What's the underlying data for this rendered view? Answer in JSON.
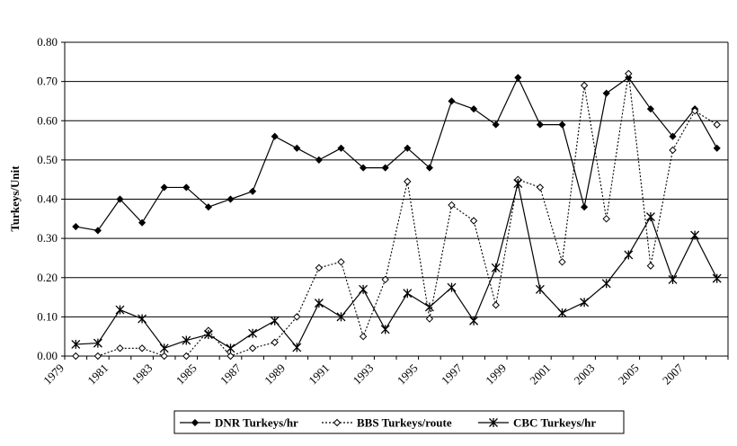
{
  "chart_data": {
    "type": "line",
    "ylabel": "Turkeys/Unit",
    "xlabel": "",
    "ylim": [
      0,
      0.8
    ],
    "y_ticks": [
      "0.00",
      "0.10",
      "0.20",
      "0.30",
      "0.40",
      "0.50",
      "0.60",
      "0.70",
      "0.80"
    ],
    "x_range": [
      1979,
      2009
    ],
    "x_ticks": [
      "1979",
      "1981",
      "1983",
      "1985",
      "1987",
      "1989",
      "1991",
      "1993",
      "1995",
      "1997",
      "1999",
      "2001",
      "2003",
      "2005",
      "2007"
    ],
    "grid": "horizontal",
    "legend_position": "bottom",
    "x": [
      1979.5,
      1980.5,
      1981.5,
      1982.5,
      1983.5,
      1984.5,
      1985.5,
      1986.5,
      1987.5,
      1988.5,
      1989.5,
      1990.5,
      1991.5,
      1992.5,
      1993.5,
      1994.5,
      1995.5,
      1996.5,
      1997.5,
      1998.5,
      1999.5,
      2000.5,
      2001.5,
      2002.5,
      2003.5,
      2004.5,
      2005.5,
      2006.5,
      2007.5,
      2008.5
    ],
    "series": [
      {
        "name": "DNR Turkeys/hr",
        "style": "solid",
        "marker": "diamond",
        "values": [
          0.33,
          0.32,
          0.4,
          0.34,
          0.43,
          0.43,
          0.38,
          0.4,
          0.42,
          0.56,
          0.53,
          0.5,
          0.53,
          0.48,
          0.48,
          0.53,
          0.48,
          0.65,
          0.63,
          0.59,
          0.71,
          0.59,
          0.59,
          0.38,
          0.67,
          0.71,
          0.63,
          0.56,
          0.63,
          0.53
        ]
      },
      {
        "name": "BBS Turkeys/route",
        "style": "dotted",
        "marker": "open-diamond",
        "values": [
          0.0,
          0.0,
          0.02,
          0.02,
          0.0,
          0.0,
          0.065,
          0.0,
          0.02,
          0.035,
          0.1,
          0.225,
          0.24,
          0.05,
          0.195,
          0.445,
          0.095,
          0.385,
          0.345,
          0.13,
          0.45,
          0.43,
          0.24,
          0.69,
          0.35,
          0.72,
          0.23,
          0.525,
          0.625,
          0.59
        ]
      },
      {
        "name": "CBC Turkeys/hr",
        "style": "solid",
        "marker": "star",
        "values": [
          0.03,
          0.033,
          0.118,
          0.095,
          0.02,
          0.04,
          0.055,
          0.02,
          0.058,
          0.09,
          0.022,
          0.135,
          0.1,
          0.17,
          0.068,
          0.16,
          0.125,
          0.175,
          0.09,
          0.225,
          0.44,
          0.17,
          0.11,
          0.137,
          0.185,
          0.258,
          0.355,
          0.195,
          0.308,
          0.198
        ]
      }
    ]
  }
}
